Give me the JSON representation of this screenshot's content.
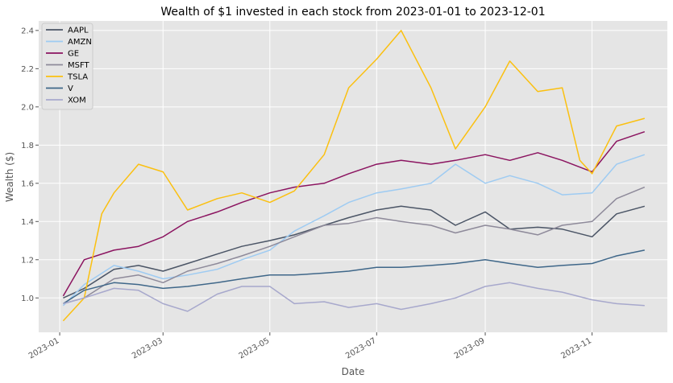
{
  "chart_data": {
    "type": "line",
    "title": "Wealth of $1 invested in each stock from 2023-01-01 to 2023-12-01",
    "xlabel": "Date",
    "ylabel": "Wealth ($)",
    "xlim": [
      "2022-12-20",
      "2023-12-14"
    ],
    "ylim": [
      0.82,
      2.45
    ],
    "x_ticks": [
      "2023-01",
      "2023-03",
      "2023-05",
      "2023-07",
      "2023-09",
      "2023-11"
    ],
    "y_ticks": [
      "1.0",
      "1.2",
      "1.4",
      "1.6",
      "1.8",
      "2.0",
      "2.2",
      "2.4"
    ],
    "grid": true,
    "legend_position": "top-left",
    "series": [
      {
        "name": "AAPL",
        "color": "#4b5566",
        "points": [
          [
            "2023-01-03",
            1.0
          ],
          [
            "2023-01-15",
            1.05
          ],
          [
            "2023-02-01",
            1.15
          ],
          [
            "2023-02-15",
            1.17
          ],
          [
            "2023-03-01",
            1.14
          ],
          [
            "2023-03-15",
            1.18
          ],
          [
            "2023-04-01",
            1.23
          ],
          [
            "2023-04-15",
            1.27
          ],
          [
            "2023-05-01",
            1.3
          ],
          [
            "2023-05-15",
            1.33
          ],
          [
            "2023-06-01",
            1.38
          ],
          [
            "2023-06-15",
            1.42
          ],
          [
            "2023-07-01",
            1.46
          ],
          [
            "2023-07-15",
            1.48
          ],
          [
            "2023-08-01",
            1.46
          ],
          [
            "2023-08-15",
            1.38
          ],
          [
            "2023-09-01",
            1.45
          ],
          [
            "2023-09-15",
            1.36
          ],
          [
            "2023-10-01",
            1.37
          ],
          [
            "2023-10-15",
            1.36
          ],
          [
            "2023-11-01",
            1.32
          ],
          [
            "2023-11-15",
            1.44
          ],
          [
            "2023-12-01",
            1.48
          ]
        ]
      },
      {
        "name": "AMZN",
        "color": "#9ecbf2",
        "points": [
          [
            "2023-01-03",
            0.96
          ],
          [
            "2023-01-15",
            1.07
          ],
          [
            "2023-02-01",
            1.17
          ],
          [
            "2023-02-15",
            1.14
          ],
          [
            "2023-03-01",
            1.1
          ],
          [
            "2023-03-15",
            1.12
          ],
          [
            "2023-04-01",
            1.15
          ],
          [
            "2023-04-15",
            1.2
          ],
          [
            "2023-05-01",
            1.25
          ],
          [
            "2023-05-15",
            1.35
          ],
          [
            "2023-06-01",
            1.43
          ],
          [
            "2023-06-15",
            1.5
          ],
          [
            "2023-07-01",
            1.55
          ],
          [
            "2023-07-15",
            1.57
          ],
          [
            "2023-08-01",
            1.6
          ],
          [
            "2023-08-15",
            1.7
          ],
          [
            "2023-09-01",
            1.6
          ],
          [
            "2023-09-15",
            1.64
          ],
          [
            "2023-10-01",
            1.6
          ],
          [
            "2023-10-15",
            1.54
          ],
          [
            "2023-11-01",
            1.55
          ],
          [
            "2023-11-15",
            1.7
          ],
          [
            "2023-12-01",
            1.75
          ]
        ]
      },
      {
        "name": "GE",
        "color": "#8b1460",
        "points": [
          [
            "2023-01-03",
            1.01
          ],
          [
            "2023-01-15",
            1.2
          ],
          [
            "2023-02-01",
            1.25
          ],
          [
            "2023-02-15",
            1.27
          ],
          [
            "2023-03-01",
            1.32
          ],
          [
            "2023-03-15",
            1.4
          ],
          [
            "2023-04-01",
            1.45
          ],
          [
            "2023-04-15",
            1.5
          ],
          [
            "2023-05-01",
            1.55
          ],
          [
            "2023-05-15",
            1.58
          ],
          [
            "2023-06-01",
            1.6
          ],
          [
            "2023-06-15",
            1.65
          ],
          [
            "2023-07-01",
            1.7
          ],
          [
            "2023-07-15",
            1.72
          ],
          [
            "2023-08-01",
            1.7
          ],
          [
            "2023-08-15",
            1.72
          ],
          [
            "2023-09-01",
            1.75
          ],
          [
            "2023-09-15",
            1.72
          ],
          [
            "2023-10-01",
            1.76
          ],
          [
            "2023-10-15",
            1.72
          ],
          [
            "2023-11-01",
            1.66
          ],
          [
            "2023-11-15",
            1.82
          ],
          [
            "2023-12-01",
            1.87
          ]
        ]
      },
      {
        "name": "MSFT",
        "color": "#8e8a9a",
        "points": [
          [
            "2023-01-03",
            0.97
          ],
          [
            "2023-01-15",
            1.0
          ],
          [
            "2023-02-01",
            1.1
          ],
          [
            "2023-02-15",
            1.12
          ],
          [
            "2023-03-01",
            1.08
          ],
          [
            "2023-03-15",
            1.14
          ],
          [
            "2023-04-01",
            1.18
          ],
          [
            "2023-04-15",
            1.22
          ],
          [
            "2023-05-01",
            1.27
          ],
          [
            "2023-05-15",
            1.32
          ],
          [
            "2023-06-01",
            1.38
          ],
          [
            "2023-06-15",
            1.39
          ],
          [
            "2023-07-01",
            1.42
          ],
          [
            "2023-07-15",
            1.4
          ],
          [
            "2023-08-01",
            1.38
          ],
          [
            "2023-08-15",
            1.34
          ],
          [
            "2023-09-01",
            1.38
          ],
          [
            "2023-09-15",
            1.36
          ],
          [
            "2023-10-01",
            1.33
          ],
          [
            "2023-10-15",
            1.38
          ],
          [
            "2023-11-01",
            1.4
          ],
          [
            "2023-11-15",
            1.52
          ],
          [
            "2023-12-01",
            1.58
          ]
        ]
      },
      {
        "name": "TSLA",
        "color": "#fbc010",
        "points": [
          [
            "2023-01-03",
            0.88
          ],
          [
            "2023-01-15",
            1.0
          ],
          [
            "2023-01-25",
            1.44
          ],
          [
            "2023-02-01",
            1.55
          ],
          [
            "2023-02-15",
            1.7
          ],
          [
            "2023-03-01",
            1.66
          ],
          [
            "2023-03-15",
            1.46
          ],
          [
            "2023-04-01",
            1.52
          ],
          [
            "2023-04-15",
            1.55
          ],
          [
            "2023-05-01",
            1.5
          ],
          [
            "2023-05-15",
            1.56
          ],
          [
            "2023-06-01",
            1.75
          ],
          [
            "2023-06-15",
            2.1
          ],
          [
            "2023-07-01",
            2.25
          ],
          [
            "2023-07-15",
            2.4
          ],
          [
            "2023-08-01",
            2.1
          ],
          [
            "2023-08-15",
            1.78
          ],
          [
            "2023-09-01",
            2.0
          ],
          [
            "2023-09-15",
            2.24
          ],
          [
            "2023-10-01",
            2.08
          ],
          [
            "2023-10-15",
            2.1
          ],
          [
            "2023-10-25",
            1.72
          ],
          [
            "2023-11-01",
            1.65
          ],
          [
            "2023-11-15",
            1.9
          ],
          [
            "2023-12-01",
            1.94
          ]
        ]
      },
      {
        "name": "V",
        "color": "#3f6789",
        "points": [
          [
            "2023-01-03",
            0.97
          ],
          [
            "2023-01-15",
            1.04
          ],
          [
            "2023-02-01",
            1.08
          ],
          [
            "2023-02-15",
            1.07
          ],
          [
            "2023-03-01",
            1.05
          ],
          [
            "2023-03-15",
            1.06
          ],
          [
            "2023-04-01",
            1.08
          ],
          [
            "2023-04-15",
            1.1
          ],
          [
            "2023-05-01",
            1.12
          ],
          [
            "2023-05-15",
            1.12
          ],
          [
            "2023-06-01",
            1.13
          ],
          [
            "2023-06-15",
            1.14
          ],
          [
            "2023-07-01",
            1.16
          ],
          [
            "2023-07-15",
            1.16
          ],
          [
            "2023-08-01",
            1.17
          ],
          [
            "2023-08-15",
            1.18
          ],
          [
            "2023-09-01",
            1.2
          ],
          [
            "2023-09-15",
            1.18
          ],
          [
            "2023-10-01",
            1.16
          ],
          [
            "2023-10-15",
            1.17
          ],
          [
            "2023-11-01",
            1.18
          ],
          [
            "2023-11-15",
            1.22
          ],
          [
            "2023-12-01",
            1.25
          ]
        ]
      },
      {
        "name": "XOM",
        "color": "#a7a8cc",
        "points": [
          [
            "2023-01-03",
            0.97
          ],
          [
            "2023-01-15",
            1.0
          ],
          [
            "2023-02-01",
            1.05
          ],
          [
            "2023-02-15",
            1.04
          ],
          [
            "2023-03-01",
            0.97
          ],
          [
            "2023-03-15",
            0.93
          ],
          [
            "2023-04-01",
            1.02
          ],
          [
            "2023-04-15",
            1.06
          ],
          [
            "2023-05-01",
            1.06
          ],
          [
            "2023-05-15",
            0.97
          ],
          [
            "2023-06-01",
            0.98
          ],
          [
            "2023-06-15",
            0.95
          ],
          [
            "2023-07-01",
            0.97
          ],
          [
            "2023-07-15",
            0.94
          ],
          [
            "2023-08-01",
            0.97
          ],
          [
            "2023-08-15",
            1.0
          ],
          [
            "2023-09-01",
            1.06
          ],
          [
            "2023-09-15",
            1.08
          ],
          [
            "2023-10-01",
            1.05
          ],
          [
            "2023-10-15",
            1.03
          ],
          [
            "2023-11-01",
            0.99
          ],
          [
            "2023-11-15",
            0.97
          ],
          [
            "2023-12-01",
            0.96
          ]
        ]
      }
    ]
  }
}
